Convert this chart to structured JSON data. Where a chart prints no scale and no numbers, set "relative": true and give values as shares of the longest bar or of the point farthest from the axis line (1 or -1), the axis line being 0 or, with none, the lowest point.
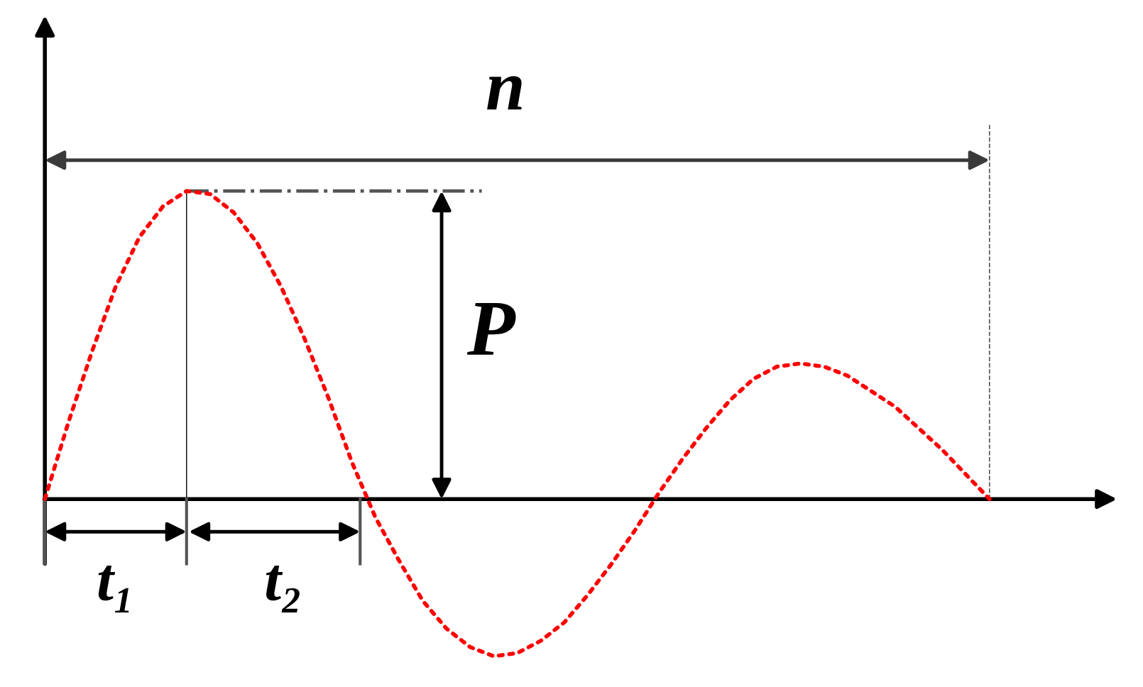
{
  "chart_data": {
    "type": "line",
    "relative": true,
    "line_style": "dotted",
    "categories": [
      null,
      null,
      null,
      null,
      null,
      null,
      null,
      null,
      null,
      null,
      null,
      null,
      null,
      null,
      null,
      null,
      null,
      null,
      null,
      null,
      null,
      null,
      null,
      null,
      null,
      null,
      null,
      null,
      null,
      null,
      null,
      null,
      null,
      null,
      null,
      null,
      null,
      null,
      null,
      null,
      null
    ],
    "series": [
      {
        "color": "#ff0000",
        "values": [
          0,
          0.25,
          0.48,
          0.69,
          0.85,
          0.95,
          1.0,
          0.99,
          0.93,
          0.83,
          0.69,
          0.52,
          0.33,
          0.12,
          -0.06,
          -0.2,
          -0.33,
          -0.42,
          -0.48,
          -0.51,
          -0.5,
          -0.46,
          -0.4,
          -0.31,
          -0.21,
          -0.1,
          0.02,
          0.13,
          0.23,
          0.32,
          0.39,
          0.43,
          0.44,
          0.43,
          0.4,
          0.35,
          0.3,
          0.23,
          0.16,
          0.08,
          0
        ]
      }
    ],
    "annotations": [
      "n",
      "P",
      "t₁",
      "t₂"
    ]
  }
}
